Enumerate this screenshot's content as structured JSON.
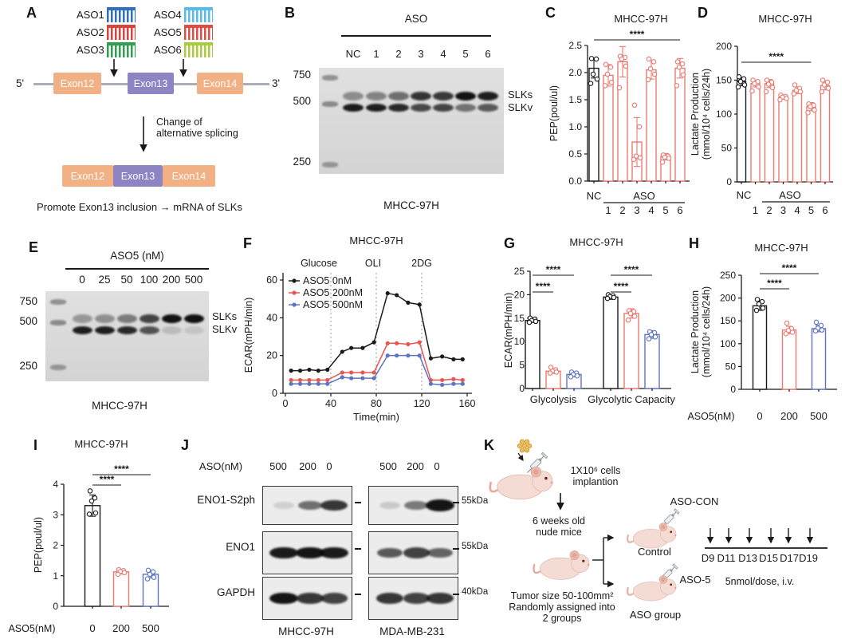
{
  "colors": {
    "black": "#1a1a1a",
    "red": "#E97A70",
    "red_line": "#E8574F",
    "blue": "#5E74C2",
    "exon_orange": "#F2B184",
    "exon_purple": "#8D85C3",
    "gene_line": "#A8AFBA",
    "mouse_body": "#F4DCD4",
    "mouse_ear": "#EBB8AC"
  },
  "panels": {
    "A": {
      "label": "A",
      "asos": [
        {
          "name": "ASO1",
          "color": "#2E6FBF"
        },
        {
          "name": "ASO2",
          "color": "#D9433C"
        },
        {
          "name": "ASO3",
          "color": "#2F9E4F"
        },
        {
          "name": "ASO4",
          "color": "#56BBEA"
        },
        {
          "name": "ASO5",
          "color": "#E04B44"
        },
        {
          "name": "ASO6",
          "color": "#A8CC3D"
        }
      ],
      "five_prime": "5'",
      "three_prime": "3'",
      "exons_top": [
        "Exon12",
        "Exon13",
        "Exon14"
      ],
      "change_text_line1": "Change of",
      "change_text_line2": "alternative splicing",
      "exons_bottom": [
        "Exon12",
        "Exon13",
        "Exon14"
      ],
      "caption": "Promote Exon13 inclusion → mRNA of SLKs"
    },
    "B": {
      "label": "B",
      "group_label": "ASO",
      "lanes": [
        "NC",
        "1",
        "2",
        "3",
        "4",
        "5",
        "6"
      ],
      "ladder": [
        "750",
        "500",
        "250"
      ],
      "band_labels": [
        "SLKs",
        "SLKv"
      ],
      "cell_line": "MHCC-97H",
      "slks_intensity": [
        0.38,
        0.42,
        0.52,
        0.8,
        0.78,
        0.96,
        0.9
      ],
      "slkv_intensity": [
        0.92,
        0.9,
        0.85,
        0.7,
        0.72,
        0.5,
        0.62
      ]
    },
    "E": {
      "label": "E",
      "group_label": "ASO5 (nM)",
      "lanes": [
        "0",
        "25",
        "50",
        "100",
        "200",
        "500"
      ],
      "ladder": [
        "750",
        "500",
        "250"
      ],
      "band_labels": [
        "SLKs",
        "SLKv"
      ],
      "cell_line": "MHCC-97H",
      "slks_intensity": [
        0.32,
        0.36,
        0.46,
        0.72,
        0.96,
        0.96
      ],
      "slkv_intensity": [
        0.9,
        0.9,
        0.85,
        0.65,
        0.15,
        0.1
      ]
    },
    "J": {
      "label": "J",
      "header": "ASO(nM)",
      "lane_headers": [
        "500",
        "200",
        "0"
      ],
      "rows": [
        "ENO1-S2ph",
        "ENO1",
        "GAPDH"
      ],
      "kda": [
        "55kDa",
        "55kDa",
        "40kDa"
      ],
      "cell_lines": [
        "MHCC-97H",
        "MDA-MB-231"
      ],
      "band_intensity": {
        "row0": [
          [
            0.12,
            0.55,
            0.8
          ],
          [
            0.15,
            0.5,
            0.95
          ]
        ],
        "row1": [
          [
            0.92,
            0.95,
            0.92
          ],
          [
            0.65,
            0.75,
            0.6
          ]
        ],
        "row2": [
          [
            0.95,
            0.8,
            0.75
          ],
          [
            0.8,
            0.75,
            0.8
          ]
        ]
      }
    },
    "K": {
      "label": "K",
      "cells_line1": "1X10⁶ cells",
      "cells_line2": "implantion",
      "mice_line1": "6 weeks old",
      "mice_line2": "nude mice",
      "tumor_line1": "Tumor size 50-100mm²",
      "tumor_line2": "Randomly assigned into",
      "tumor_line3": "2 groups",
      "aso_con": "ASO-CON",
      "control": "Control",
      "aso5": "ASO-5",
      "aso_group": "ASO group",
      "days": [
        "D9",
        "D11",
        "D13",
        "D15",
        "D17",
        "D19"
      ],
      "dose": "5nmol/dose, i.v."
    }
  },
  "chart_data": [
    {
      "panel": "C",
      "type": "bar",
      "title": "MHCC-97H",
      "ylabel": "PEP(poul/ul)",
      "ylim": [
        0,
        2.5
      ],
      "yticks": [
        0,
        0.5,
        1,
        1.5,
        2,
        2.5
      ],
      "ydecimals": 1,
      "categories": [
        "NC",
        "1",
        "2",
        "3",
        "4",
        "5",
        "6"
      ],
      "xgroup_label": "ASO",
      "values": [
        2.08,
        1.95,
        2.2,
        0.72,
        2.05,
        0.45,
        2.08
      ],
      "errors": [
        0.18,
        0.2,
        0.28,
        0.45,
        0.17,
        0.06,
        0.18
      ],
      "points": [
        [
          2.26,
          2.25,
          1.97,
          1.88,
          1.8
        ],
        [
          2.15,
          2.1,
          1.97,
          1.82,
          1.76
        ],
        [
          2.3,
          2.28,
          2.25,
          2.12,
          1.72
        ],
        [
          1.4,
          1.0,
          0.46,
          0.43,
          0.4
        ],
        [
          2.25,
          2.2,
          2.07,
          1.97,
          1.87
        ],
        [
          0.48,
          0.46,
          0.44,
          0.42,
          0.35
        ],
        [
          2.2,
          2.16,
          2.1,
          1.96,
          1.76
        ]
      ],
      "bar_colors": [
        "black",
        "red",
        "red",
        "red",
        "red",
        "red",
        "red"
      ],
      "sig": [
        {
          "label": "****",
          "from": "NC",
          "to": "ASO6"
        }
      ]
    },
    {
      "panel": "D",
      "type": "bar",
      "title": "MHCC-97H",
      "ylabel": [
        "Lactate Production",
        "(mmol/10⁴ cells/24h)"
      ],
      "ylim": [
        0,
        200
      ],
      "yticks": [
        0,
        50,
        100,
        150,
        200
      ],
      "ydecimals": 0,
      "categories": [
        "NC",
        "1",
        "2",
        "3",
        "4",
        "5",
        "6"
      ],
      "xgroup_label": "ASO",
      "values": [
        148,
        145,
        145,
        125,
        135,
        111,
        142
      ],
      "errors": [
        6,
        5,
        6,
        3,
        5,
        6,
        6
      ],
      "points": [
        [
          155,
          152,
          148,
          143,
          140
        ],
        [
          150,
          148,
          145,
          140,
          134
        ],
        [
          150,
          147,
          144,
          139,
          133
        ],
        [
          128,
          126,
          125,
          123,
          121
        ],
        [
          143,
          138,
          135,
          133,
          130
        ],
        [
          115,
          113,
          111,
          106,
          102
        ],
        [
          150,
          147,
          143,
          138,
          133
        ]
      ],
      "bar_colors": [
        "black",
        "red",
        "red",
        "red",
        "red",
        "red",
        "red"
      ],
      "sig": [
        {
          "label": "****",
          "from": "NC",
          "to": "ASO5"
        }
      ]
    },
    {
      "panel": "F",
      "type": "line",
      "title": "MHCC-97H",
      "ylabel": "ECAR(mPH/min)",
      "xlabel": "Time(min)",
      "ylim": [
        0,
        60
      ],
      "yticks": [
        0,
        20,
        40,
        60
      ],
      "xticks": [
        0,
        40,
        80,
        120,
        160
      ],
      "injections": [
        {
          "label": "Glucose",
          "x": 40
        },
        {
          "label": "OLI",
          "x": 80
        },
        {
          "label": "2DG",
          "x": 120
        }
      ],
      "x": [
        5,
        13,
        21,
        29,
        37,
        50,
        58,
        68,
        78,
        90,
        98,
        108,
        118,
        128,
        138,
        148,
        156
      ],
      "series": [
        {
          "name": "ASO5 0nM",
          "color": "black",
          "y": [
            12,
            12,
            12.5,
            12,
            12.5,
            22,
            24,
            24,
            27,
            53,
            52,
            48,
            47,
            18.5,
            19.5,
            18,
            18
          ]
        },
        {
          "name": "ASO5 200nM",
          "color": "red_line",
          "y": [
            7,
            7,
            7,
            7,
            7,
            11,
            11,
            11,
            11,
            26.5,
            26.5,
            26,
            27,
            7,
            7,
            7.5,
            7
          ]
        },
        {
          "name": "ASO5 500nM",
          "color": "blue",
          "y": [
            5,
            5,
            5,
            5,
            5,
            8.5,
            8,
            8,
            8,
            20,
            20,
            20,
            20,
            5,
            4.5,
            5,
            5
          ]
        }
      ]
    },
    {
      "panel": "G",
      "type": "grouped-bar",
      "title": "MHCC-97H",
      "ylabel": "ECAR(mPH/min)",
      "ylim": [
        0,
        25
      ],
      "yticks": [
        0,
        5,
        10,
        15,
        20,
        25
      ],
      "ydecimals": 0,
      "groups": [
        "Glycolysis",
        "Glycolytic Capacity"
      ],
      "series_names": [
        "ASO5 0nM",
        "ASO5 200nM",
        "ASO5 500nM"
      ],
      "values": [
        [
          14.5,
          3.7,
          3.0
        ],
        [
          19.5,
          16.0,
          11.5
        ]
      ],
      "errors": [
        [
          0.4,
          0.5,
          0.5
        ],
        [
          0.5,
          1.0,
          0.8
        ]
      ],
      "points": [
        [
          [
            15,
            14.8,
            14.5,
            14.3,
            14.1
          ],
          [
            4.5,
            4.0,
            3.7,
            3.5,
            3.3
          ],
          [
            3.5,
            3.3,
            3.0,
            2.7,
            2.5
          ]
        ],
        [
          [
            20,
            19.8,
            19.6,
            19.4,
            19.2
          ],
          [
            16.6,
            16.4,
            16,
            15.4,
            14.6
          ],
          [
            12.1,
            11.9,
            11.5,
            11,
            10.6
          ]
        ]
      ],
      "bar_colors": [
        "black",
        "red",
        "blue"
      ],
      "sig": [
        {
          "label": "****",
          "group": 0,
          "from": 0,
          "to": 2
        },
        {
          "label": "****",
          "group": 0,
          "from": 0,
          "to": 1
        },
        {
          "label": "****",
          "group": 1,
          "from": 0,
          "to": 2
        },
        {
          "label": "****",
          "group": 1,
          "from": 0,
          "to": 1
        }
      ]
    },
    {
      "panel": "H",
      "type": "bar",
      "title": "MHCC-97H",
      "ylabel": [
        "Lactate Production",
        "(mmol/10⁴ cells/24h)"
      ],
      "xlabel": "ASO5(nM)",
      "ylim": [
        0,
        250
      ],
      "yticks": [
        0,
        50,
        100,
        150,
        200,
        250
      ],
      "ydecimals": 0,
      "categories": [
        "0",
        "200",
        "500"
      ],
      "values": [
        183,
        130,
        133
      ],
      "errors": [
        10,
        8,
        7
      ],
      "points": [
        [
          197,
          192,
          187,
          178,
          173
        ],
        [
          145,
          133,
          129,
          125,
          122
        ],
        [
          147,
          140,
          134,
          130,
          128
        ]
      ],
      "bar_colors": [
        "black",
        "red",
        "blue"
      ],
      "sig": [
        {
          "label": "****",
          "from": "0",
          "to": "500"
        },
        {
          "label": "****",
          "from": "0",
          "to": "200"
        }
      ]
    },
    {
      "panel": "I",
      "type": "bar",
      "title": "MHCC-97H",
      "ylabel": "PEP(poul/ul)",
      "xlabel": "ASO5(nM)",
      "ylim": [
        0,
        4
      ],
      "yticks": [
        0,
        1,
        2,
        3,
        4
      ],
      "ydecimals": 0,
      "categories": [
        "0",
        "200",
        "500"
      ],
      "values": [
        3.3,
        1.13,
        1.05
      ],
      "errors": [
        0.35,
        0.07,
        0.12
      ],
      "points": [
        [
          3.78,
          3.55,
          3.45,
          3.06,
          3.02
        ],
        [
          1.2,
          1.17,
          1.14,
          1.1,
          1.05
        ],
        [
          1.18,
          1.13,
          1.05,
          0.95,
          0.9
        ]
      ],
      "bar_colors": [
        "black",
        "red",
        "blue"
      ],
      "sig": [
        {
          "label": "****",
          "from": "0",
          "to": "500"
        },
        {
          "label": "****",
          "from": "0",
          "to": "200"
        }
      ]
    }
  ]
}
